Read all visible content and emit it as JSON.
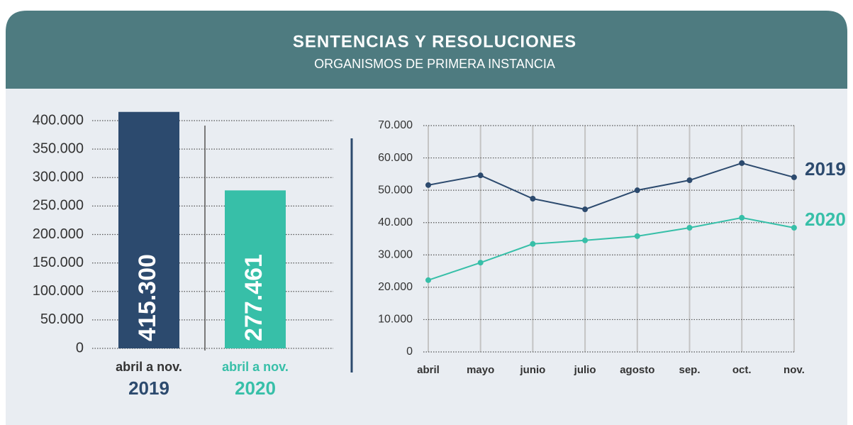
{
  "header": {
    "title": "SENTENCIAS Y RESOLUCIONES",
    "subtitle": "ORGANISMOS DE PRIMERA INSTANCIA"
  },
  "chart_data": [
    {
      "type": "bar",
      "categories": [
        "2019",
        "2020"
      ],
      "sublabels": [
        "abril a nov.",
        "abril a nov."
      ],
      "values": [
        415300,
        277461
      ],
      "value_labels": [
        "415.300",
        "277.461"
      ],
      "colors": [
        "#2c4a6e",
        "#37bfa8"
      ],
      "ylim": [
        0,
        400000
      ],
      "yticks": [
        0,
        {
          "value": 50000,
          "label": "50.000"
        },
        {
          "value": 100000,
          "label": "100.000"
        },
        {
          "value": 150000,
          "label": "150.000"
        },
        {
          "value": 200000,
          "label": "200.000"
        },
        {
          "value": 250000,
          "label": "250.000"
        },
        {
          "value": 300000,
          "label": "300.000"
        },
        {
          "value": 350000,
          "label": "350.000"
        },
        {
          "value": 400000,
          "label": "400.000"
        }
      ],
      "grid": true
    },
    {
      "type": "line",
      "categories": [
        "abril",
        "mayo",
        "junio",
        "julio",
        "agosto",
        "sep.",
        "oct.",
        "nov."
      ],
      "series": [
        {
          "name": "2019",
          "color": "#2c4a6e",
          "values": [
            51600,
            54600,
            47400,
            44100,
            50000,
            53100,
            58400,
            54000
          ]
        },
        {
          "name": "2020",
          "color": "#37bfa8",
          "values": [
            22200,
            27600,
            33400,
            34500,
            35800,
            38400,
            41500,
            38400
          ]
        }
      ],
      "ylim": [
        0,
        70000
      ],
      "yticks": [
        0,
        {
          "value": 10000,
          "label": "10.000"
        },
        {
          "value": 20000,
          "label": "20.000"
        },
        {
          "value": 30000,
          "label": "30.000"
        },
        {
          "value": 40000,
          "label": "40.000"
        },
        {
          "value": 50000,
          "label": "50.000"
        },
        {
          "value": 60000,
          "label": "60.000"
        },
        {
          "value": 70000,
          "label": "70.000"
        }
      ],
      "grid": true
    }
  ]
}
